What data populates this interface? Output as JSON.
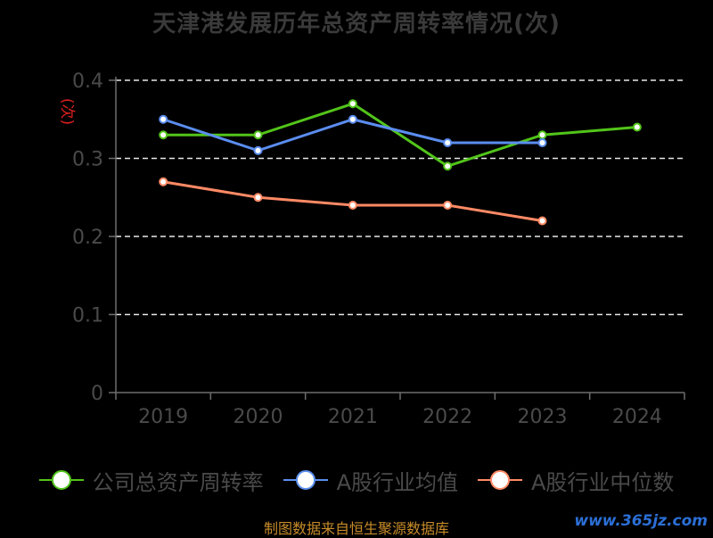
{
  "title": "天津港发展历年总资产周转率情况(次)",
  "source_note": "制图数据来自恒生聚源数据库",
  "watermark": "www.365jz.com",
  "chart_data": {
    "type": "line",
    "title": "天津港发展历年总资产周转率情况(次)",
    "ylabel": "(次)",
    "xlabel": "",
    "categories": [
      "2019",
      "2020",
      "2021",
      "2022",
      "2023",
      "2024"
    ],
    "yticks": [
      "0",
      "0.1",
      "0.2",
      "0.3",
      "0.4"
    ],
    "ylim": [
      0,
      0.4
    ],
    "grid": "horizontal dashed",
    "legend_position": "bottom",
    "series": [
      {
        "name": "公司总资产周转率",
        "color": "#52c41a",
        "values": [
          0.33,
          0.33,
          0.37,
          0.29,
          0.33,
          0.34
        ]
      },
      {
        "name": "A股行业均值",
        "color": "#5b8def",
        "values": [
          0.35,
          0.31,
          0.35,
          0.32,
          0.32,
          null
        ]
      },
      {
        "name": "A股行业中位数",
        "color": "#ff8a65",
        "values": [
          0.27,
          0.25,
          0.24,
          0.24,
          0.22,
          null
        ]
      }
    ]
  }
}
